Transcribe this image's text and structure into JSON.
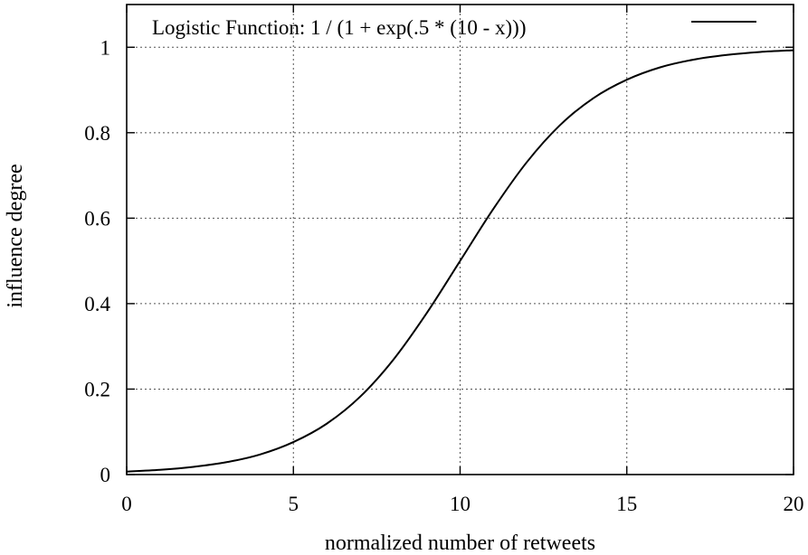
{
  "chart_data": {
    "type": "line",
    "xlabel": "normalized number of retweets",
    "ylabel": "influence degree",
    "xlim": [
      0,
      20
    ],
    "ylim": [
      0,
      1.1
    ],
    "x_ticks": [
      "0",
      "5",
      "10",
      "15",
      "20"
    ],
    "y_ticks": [
      "0",
      "0.2",
      "0.4",
      "0.6",
      "0.8",
      "1"
    ],
    "grid": true,
    "legend_position": "top-right",
    "series": [
      {
        "name": "Logistic Function: 1 / (1 + exp(.5 * (10 - x)))",
        "color": "#000000",
        "x": [
          0,
          1,
          2,
          3,
          4,
          5,
          6,
          7,
          8,
          9,
          10,
          11,
          12,
          13,
          14,
          15,
          16,
          17,
          18,
          19,
          20
        ],
        "y": [
          0.007,
          0.011,
          0.018,
          0.029,
          0.047,
          0.076,
          0.119,
          0.182,
          0.269,
          0.378,
          0.5,
          0.622,
          0.731,
          0.818,
          0.881,
          0.924,
          0.953,
          0.971,
          0.982,
          0.989,
          0.993
        ]
      }
    ]
  }
}
